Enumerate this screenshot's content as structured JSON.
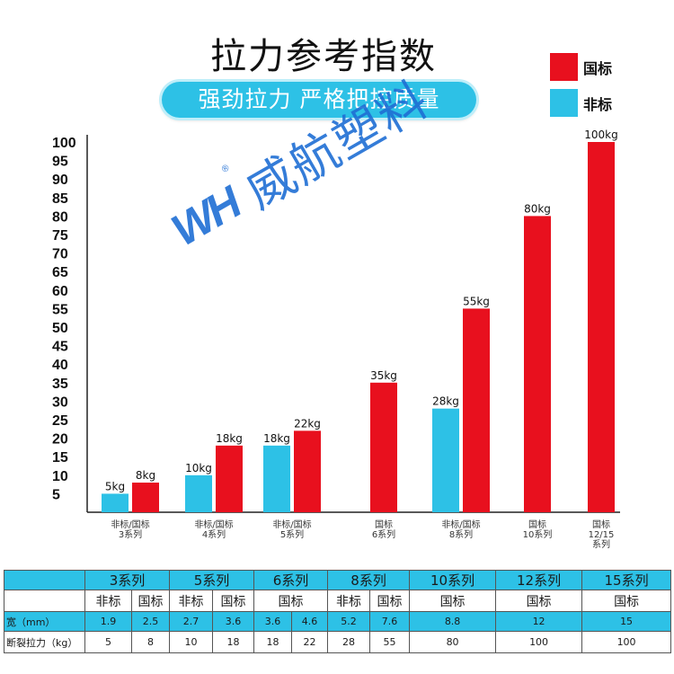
{
  "title": "拉力参考指数",
  "subtitle": "强劲拉力 严格把控质量",
  "legend": [
    {
      "label": "国标",
      "color": "#e8101e"
    },
    {
      "label": "非标",
      "color": "#2dc1e6"
    }
  ],
  "watermark": {
    "logo": "WH",
    "reg": "®",
    "text": "威航塑料"
  },
  "chart_data": {
    "type": "bar",
    "title": "拉力参考指数",
    "yticks": [
      5,
      10,
      15,
      20,
      25,
      30,
      35,
      40,
      45,
      50,
      55,
      60,
      65,
      70,
      75,
      80,
      85,
      90,
      95,
      100
    ],
    "ylim": [
      0,
      100
    ],
    "grid": false,
    "legend_position": "top-right",
    "groups": [
      {
        "label": [
          "非标/国标",
          "3系列"
        ],
        "bars": [
          {
            "series": "非标",
            "value": 5,
            "label": "5kg"
          },
          {
            "series": "国标",
            "value": 8,
            "label": "8kg"
          }
        ]
      },
      {
        "label": [
          "非标/国标",
          "4系列"
        ],
        "bars": [
          {
            "series": "非标",
            "value": 10,
            "label": "10kg"
          },
          {
            "series": "国标",
            "value": 18,
            "label": "18kg"
          }
        ]
      },
      {
        "label": [
          "非标/国标",
          "5系列"
        ],
        "bars": [
          {
            "series": "非标",
            "value": 18,
            "label": "18kg"
          },
          {
            "series": "国标",
            "value": 22,
            "label": "22kg"
          }
        ]
      },
      {
        "label": [
          "国标",
          "6系列"
        ],
        "bars": [
          {
            "series": "国标",
            "value": 35,
            "label": "35kg"
          }
        ]
      },
      {
        "label": [
          "非标/国标",
          "8系列"
        ],
        "bars": [
          {
            "series": "非标",
            "value": 28,
            "label": "28kg"
          },
          {
            "series": "国标",
            "value": 55,
            "label": "55kg"
          }
        ]
      },
      {
        "label": [
          "国标",
          "10系列"
        ],
        "bars": [
          {
            "series": "国标",
            "value": 80,
            "label": "80kg"
          }
        ]
      },
      {
        "label": [
          "国标",
          "12/15",
          "系列"
        ],
        "bars": [
          {
            "series": "国标",
            "value": 100,
            "label": "100kg"
          }
        ]
      }
    ]
  },
  "table": {
    "series_row": [
      "3系列",
      "5系列",
      "6系列",
      "8系列",
      "10系列",
      "12系列",
      "15系列"
    ],
    "std_row": [
      "非标",
      "国标",
      "非标",
      "国标",
      "国标",
      "非标",
      "国标",
      "国标",
      "国标",
      "国标"
    ],
    "width_label": "宽（mm）",
    "width_values": [
      "1.9",
      "2.5",
      "2.7",
      "3.6",
      "3.6",
      "4.6",
      "5.2",
      "7.6",
      "8.8",
      "12",
      "15"
    ],
    "force_label": "断裂拉力（kg）",
    "force_values": [
      "5",
      "8",
      "10",
      "18",
      "18",
      "22",
      "28",
      "55",
      "80",
      "100",
      "100"
    ]
  }
}
